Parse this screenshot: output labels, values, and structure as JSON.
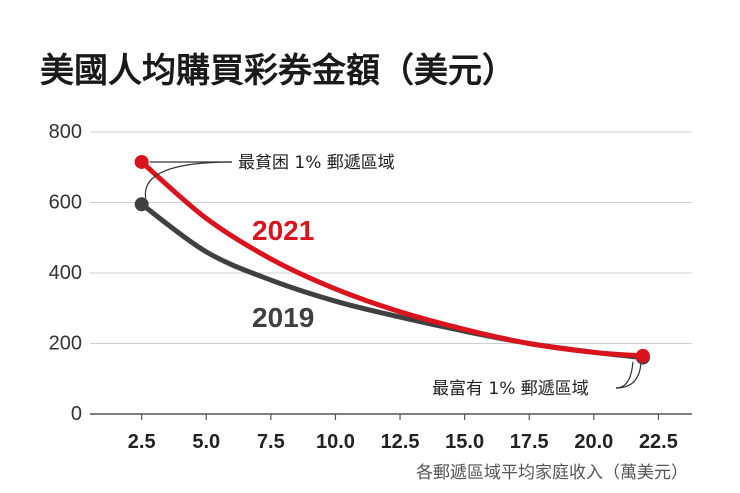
{
  "chart_data": {
    "type": "line",
    "title": "美國人均購買彩券金額（美元）",
    "xlabel": "各郵遞區域平均家庭收入（萬美元）",
    "ylabel": "",
    "xlim": [
      0.5,
      23.8
    ],
    "ylim": [
      0,
      800
    ],
    "x_ticks": [
      "2.5",
      "5.0",
      "7.5",
      "10.0",
      "12.5",
      "15.0",
      "17.5",
      "20.0",
      "22.5"
    ],
    "x_tick_values": [
      2.5,
      5.0,
      7.5,
      10.0,
      12.5,
      15.0,
      17.5,
      20.0,
      22.5
    ],
    "y_ticks": [
      "0",
      "200",
      "400",
      "600",
      "800"
    ],
    "y_tick_values": [
      0,
      200,
      400,
      600,
      800
    ],
    "grid": true,
    "series": [
      {
        "name": "2019",
        "color": "#404040",
        "x": [
          2.5,
          5,
          7.5,
          10,
          12.5,
          15,
          17.5,
          20,
          21.9
        ],
        "y": [
          595,
          460,
          380,
          320,
          275,
          235,
          200,
          175,
          160
        ]
      },
      {
        "name": "2021",
        "color": "#d9141e",
        "x": [
          2.5,
          5,
          7.5,
          10,
          12.5,
          15,
          17.5,
          20,
          21.9
        ],
        "y": [
          715,
          555,
          440,
          355,
          290,
          240,
          200,
          175,
          165
        ]
      }
    ],
    "annotations": [
      {
        "text": "最貧困 1% 郵遞區域"
      },
      {
        "text": "最富有 1% 郵遞區域"
      }
    ]
  }
}
